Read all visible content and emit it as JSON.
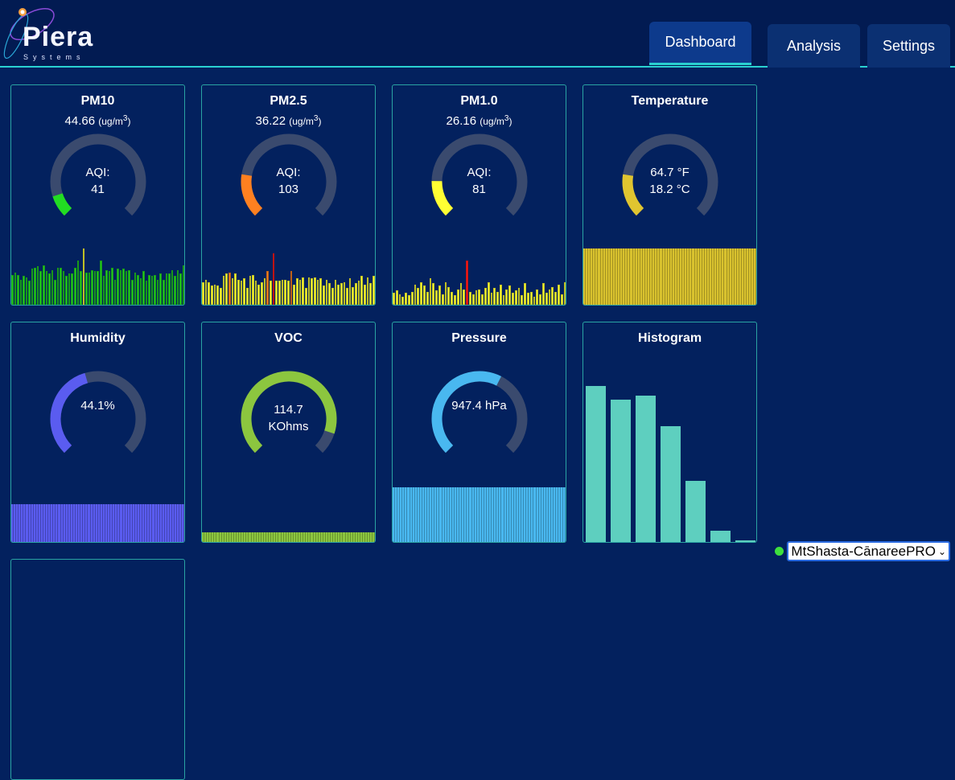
{
  "brand": {
    "name": "Piera",
    "sub": "Systems"
  },
  "tabs": [
    {
      "label": "Dashboard",
      "active": true
    },
    {
      "label": "Analysis"
    },
    {
      "label": "Settings"
    }
  ],
  "colors": {
    "track": "#3a4a6e",
    "accent": "#2ad1d1"
  },
  "cards": [
    {
      "title": "PM10",
      "value": "44.66",
      "unit": "(ug/m",
      "sup": "3",
      "unit_end": ")",
      "center": [
        "AQI:",
        "41"
      ],
      "gauge_fraction": 0.1,
      "gauge_color": "#22dd22",
      "spark": [
        25,
        27,
        25,
        21,
        24,
        23,
        20,
        30,
        31,
        32,
        28,
        33,
        28,
        26,
        29,
        21,
        31,
        31,
        28,
        24,
        26,
        26,
        31,
        37,
        28,
        47,
        27,
        27,
        29,
        28,
        28,
        37,
        24,
        29,
        28,
        31,
        21,
        30,
        29,
        30,
        28,
        29,
        21,
        27,
        25,
        22,
        28,
        20,
        25,
        24,
        25,
        21,
        26,
        21,
        26,
        26,
        29,
        24,
        29,
        26,
        33
      ],
      "spark_color": "#22cc22",
      "spark_highlight": {
        "threshold": 40,
        "color": "#ffff33"
      }
    },
    {
      "title": "PM2.5",
      "value": "36.22",
      "unit": "(ug/m",
      "sup": "3",
      "unit_end": ")",
      "center": [
        "AQI:",
        "103"
      ],
      "gauge_fraction": 0.2,
      "gauge_color": "#ff8020",
      "spark": [
        19,
        21,
        19,
        16,
        17,
        16,
        14,
        24,
        26,
        27,
        22,
        26,
        21,
        20,
        22,
        14,
        24,
        25,
        20,
        17,
        19,
        22,
        28,
        20,
        43,
        20,
        20,
        21,
        21,
        20,
        28,
        17,
        22,
        21,
        23,
        14,
        23,
        22,
        23,
        21,
        22,
        16,
        21,
        18,
        14,
        21,
        17,
        18,
        19,
        14,
        22,
        15,
        18,
        20,
        24,
        17,
        23,
        18,
        24
      ],
      "spark_color": "#ffff33",
      "spark_highlight": {
        "threshold": 27,
        "color": "#ff8020",
        "threshold2": 35,
        "color2": "#ff1a1a"
      }
    },
    {
      "title": "PM1.0",
      "value": "26.16",
      "unit": "(ug/m",
      "sup": "3",
      "unit_end": ")",
      "center": [
        "AQI:",
        "81"
      ],
      "gauge_fraction": 0.17,
      "gauge_color": "#ffff33",
      "spark": [
        10,
        12,
        9,
        7,
        10,
        8,
        11,
        17,
        14,
        19,
        16,
        11,
        22,
        18,
        12,
        16,
        9,
        19,
        15,
        11,
        8,
        13,
        18,
        13,
        37,
        11,
        9,
        12,
        13,
        9,
        14,
        19,
        10,
        14,
        11,
        17,
        8,
        13,
        16,
        10,
        12,
        14,
        8,
        18,
        10,
        11,
        7,
        13,
        9,
        18,
        10,
        13,
        15,
        11,
        17,
        9,
        19
      ],
      "spark_color": "#ffff33",
      "spark_highlight": {
        "threshold": 30,
        "color": "#ff1a1a"
      }
    },
    {
      "title": "Temperature",
      "center": [
        "64.7 °F",
        "18.2 °C"
      ],
      "gauge_fraction": 0.2,
      "gauge_color": "#e0c530",
      "spark_level": 70,
      "spark_color": "#d9c22e"
    },
    {
      "title": "Humidity",
      "center": [
        "44.1%"
      ],
      "gauge_fraction": 0.44,
      "gauge_color": "#5a5cf0",
      "spark_level": 47,
      "spark_color": "#5a5cf0"
    },
    {
      "title": "VOC",
      "center": [
        "114.7",
        "KOhms"
      ],
      "gauge_fraction": 0.9,
      "gauge_color": "#8cc63f",
      "spark_level": 12,
      "spark_color": "#8cc63f"
    },
    {
      "title": "Pressure",
      "center": [
        "947.4 hPa"
      ],
      "gauge_fraction": 0.6,
      "gauge_color": "#49b8f0",
      "spark_level": 68,
      "spark_color": "#49b8f0"
    },
    {
      "title": "Histogram",
      "histogram": [
        194,
        177,
        182,
        144,
        76,
        14,
        2
      ],
      "hist_color": "#5ecfbf"
    }
  ],
  "device": {
    "selected": "MtShasta-CānareePRO",
    "status_color": "#3ee03e"
  }
}
